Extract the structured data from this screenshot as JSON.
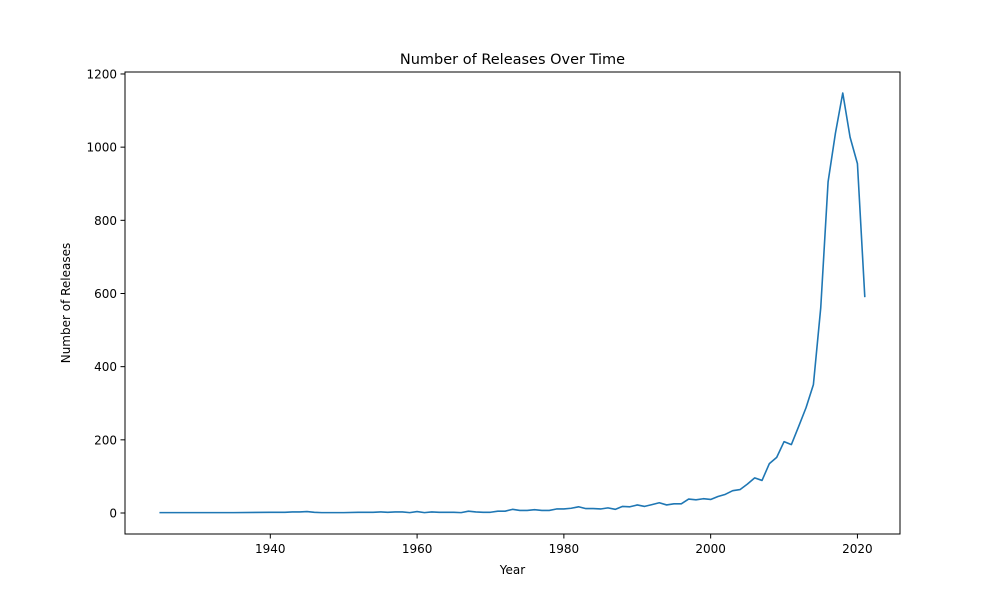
{
  "chart_data": {
    "type": "line",
    "title": "Number of Releases Over Time",
    "xlabel": "Year",
    "ylabel": "Number of Releases",
    "xlim": [
      1920.2,
      2025.8
    ],
    "ylim": [
      -57.4,
      1205.4
    ],
    "xticks": [
      1940,
      1960,
      1980,
      2000,
      2020
    ],
    "yticks": [
      0,
      200,
      400,
      600,
      800,
      1000,
      1200
    ],
    "grid": false,
    "legend": "none",
    "line_color": "#1f77b4",
    "series": [
      {
        "x": [
          1925,
          1930,
          1935,
          1940,
          1942,
          1943,
          1944,
          1945,
          1946,
          1947,
          1948,
          1950,
          1952,
          1954,
          1955,
          1956,
          1957,
          1958,
          1959,
          1960,
          1961,
          1962,
          1963,
          1964,
          1965,
          1966,
          1967,
          1968,
          1969,
          1970,
          1971,
          1972,
          1973,
          1974,
          1975,
          1976,
          1977,
          1978,
          1979,
          1980,
          1981,
          1982,
          1983,
          1984,
          1985,
          1986,
          1987,
          1988,
          1989,
          1990,
          1991,
          1992,
          1993,
          1994,
          1995,
          1996,
          1997,
          1998,
          1999,
          2000,
          2001,
          2002,
          2003,
          2004,
          2005,
          2006,
          2007,
          2008,
          2009,
          2010,
          2011,
          2012,
          2013,
          2014,
          2015,
          2016,
          2017,
          2018,
          2019,
          2020,
          2021
        ],
        "y": [
          1,
          1,
          1,
          2,
          2,
          3,
          3,
          4,
          2,
          1,
          1,
          1,
          2,
          2,
          3,
          2,
          3,
          3,
          1,
          4,
          1,
          3,
          2,
          2,
          2,
          1,
          5,
          3,
          2,
          2,
          5,
          5,
          10,
          7,
          7,
          9,
          7,
          7,
          11,
          11,
          13,
          17,
          12,
          12,
          11,
          14,
          10,
          18,
          17,
          22,
          18,
          23,
          28,
          22,
          25,
          25,
          38,
          36,
          39,
          37,
          45,
          51,
          61,
          64,
          79,
          96,
          89,
          135,
          152,
          195,
          187,
          237,
          288,
          351,
          561,
          905,
          1038,
          1148,
          1027,
          955,
          592
        ]
      }
    ]
  }
}
